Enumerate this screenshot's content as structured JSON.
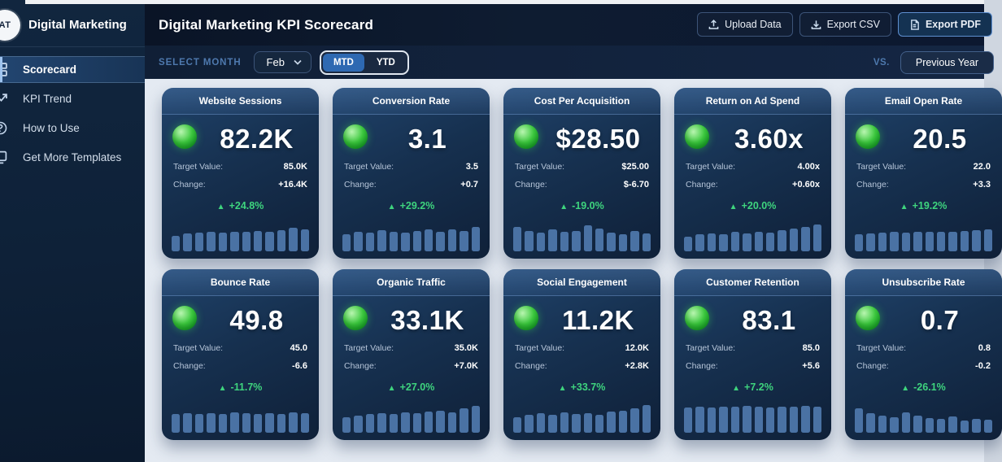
{
  "theme": {
    "status_green": "#3ecb40",
    "bar_color": "#4a72a4",
    "delta_green": "#3ed47e",
    "accent_blue": "#2e69b2"
  },
  "sidebar": {
    "logo_text": "AT",
    "brand": "Digital Marketing",
    "items": [
      {
        "label": "Scorecard",
        "icon": "grid-icon",
        "active": true
      },
      {
        "label": "KPI Trend",
        "icon": "trend-icon",
        "active": false
      },
      {
        "label": "How to Use",
        "icon": "help-icon",
        "active": false
      },
      {
        "label": "Get More Templates",
        "icon": "templates-icon",
        "active": false
      }
    ]
  },
  "header": {
    "title": "Digital Marketing KPI Scorecard",
    "buttons": [
      {
        "label": "Upload Data",
        "icon": "upload-icon"
      },
      {
        "label": "Export CSV",
        "icon": "download-icon"
      },
      {
        "label": "Export PDF",
        "icon": "document-icon"
      }
    ]
  },
  "filters": {
    "select_month_label": "SELECT MONTH",
    "month_value": "Feb",
    "period_toggle": {
      "mtd": "MTD",
      "ytd": "YTD",
      "active": "MTD"
    },
    "vs_label": "VS.",
    "comparison_value": "Previous Year"
  },
  "card_labels": {
    "target_label": "Target Value:",
    "change_label": "Change:"
  },
  "cards": [
    {
      "title": "Website Sessions",
      "value": "82.2K",
      "target": "85.0K",
      "change": "+16.4K",
      "delta_arrow": "▲",
      "delta": "+24.8%",
      "bars": [
        0.5,
        0.58,
        0.6,
        0.62,
        0.6,
        0.64,
        0.62,
        0.66,
        0.64,
        0.68,
        0.76,
        0.7
      ]
    },
    {
      "title": "Conversion Rate",
      "value": "3.1",
      "target": "3.5",
      "change": "+0.7",
      "delta_arrow": "▲",
      "delta": "+29.2%",
      "bars": [
        0.55,
        0.62,
        0.6,
        0.68,
        0.64,
        0.6,
        0.66,
        0.7,
        0.64,
        0.72,
        0.66,
        0.8
      ]
    },
    {
      "title": "Cost Per Acquisition",
      "value": "$28.50",
      "target": "$25.00",
      "change": "$-6.70",
      "delta_arrow": "▲",
      "delta": "-19.0%",
      "bars": [
        0.8,
        0.65,
        0.6,
        0.72,
        0.62,
        0.66,
        0.85,
        0.74,
        0.6,
        0.55,
        0.66,
        0.58
      ]
    },
    {
      "title": "Return on Ad Spend",
      "value": "3.60x",
      "target": "4.00x",
      "change": "+0.60x",
      "delta_arrow": "▲",
      "delta": "+20.0%",
      "bars": [
        0.48,
        0.55,
        0.58,
        0.56,
        0.62,
        0.58,
        0.64,
        0.6,
        0.68,
        0.74,
        0.8,
        0.88
      ]
    },
    {
      "title": "Email Open Rate",
      "value": "20.5",
      "target": "22.0",
      "change": "+3.3",
      "delta_arrow": "▲",
      "delta": "+19.2%",
      "bars": [
        0.55,
        0.58,
        0.6,
        0.62,
        0.6,
        0.63,
        0.62,
        0.64,
        0.62,
        0.66,
        0.68,
        0.72
      ]
    },
    {
      "title": "Bounce Rate",
      "value": "49.8",
      "target": "45.0",
      "change": "-6.6",
      "delta_arrow": "▲",
      "delta": "-11.7%",
      "bars": [
        0.6,
        0.63,
        0.6,
        0.64,
        0.61,
        0.66,
        0.62,
        0.6,
        0.64,
        0.61,
        0.65,
        0.62
      ]
    },
    {
      "title": "Organic Traffic",
      "value": "33.1K",
      "target": "35.0K",
      "change": "+7.0K",
      "delta_arrow": "▲",
      "delta": "+27.0%",
      "bars": [
        0.5,
        0.56,
        0.6,
        0.64,
        0.6,
        0.66,
        0.62,
        0.68,
        0.72,
        0.66,
        0.78,
        0.88
      ]
    },
    {
      "title": "Social Engagement",
      "value": "11.2K",
      "target": "12.0K",
      "change": "+2.8K",
      "delta_arrow": "▲",
      "delta": "+33.7%",
      "bars": [
        0.5,
        0.57,
        0.62,
        0.58,
        0.66,
        0.6,
        0.63,
        0.58,
        0.68,
        0.72,
        0.78,
        0.9
      ]
    },
    {
      "title": "Customer Retention",
      "value": "83.1",
      "target": "85.0",
      "change": "+5.6",
      "delta_arrow": "▲",
      "delta": "+7.2%",
      "bars": [
        0.82,
        0.84,
        0.82,
        0.85,
        0.83,
        0.86,
        0.84,
        0.82,
        0.85,
        0.83,
        0.87,
        0.85
      ]
    },
    {
      "title": "Unsubscribe Rate",
      "value": "0.7",
      "target": "0.8",
      "change": "-0.2",
      "delta_arrow": "▲",
      "delta": "-26.1%",
      "bars": [
        0.8,
        0.62,
        0.55,
        0.5,
        0.66,
        0.56,
        0.48,
        0.44,
        0.52,
        0.4,
        0.46,
        0.42
      ]
    }
  ]
}
